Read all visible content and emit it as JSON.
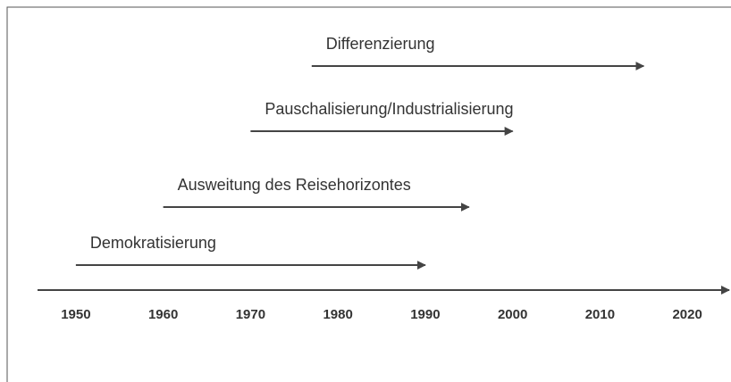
{
  "chart_data": {
    "type": "timeline",
    "categories": [
      "Demokratisierung",
      "Ausweitung des Reisehorizontes",
      "Pauschalisierung/Industrialisierung",
      "Differenzierung"
    ],
    "start": [
      1950,
      1960,
      1970,
      1977
    ],
    "end": [
      1990,
      1995,
      2000,
      2015
    ],
    "color": "#444444",
    "xlim": [
      1945,
      2025
    ],
    "xticks": [
      1950,
      1960,
      1970,
      1980,
      1990,
      2000,
      2010,
      2020
    ]
  }
}
